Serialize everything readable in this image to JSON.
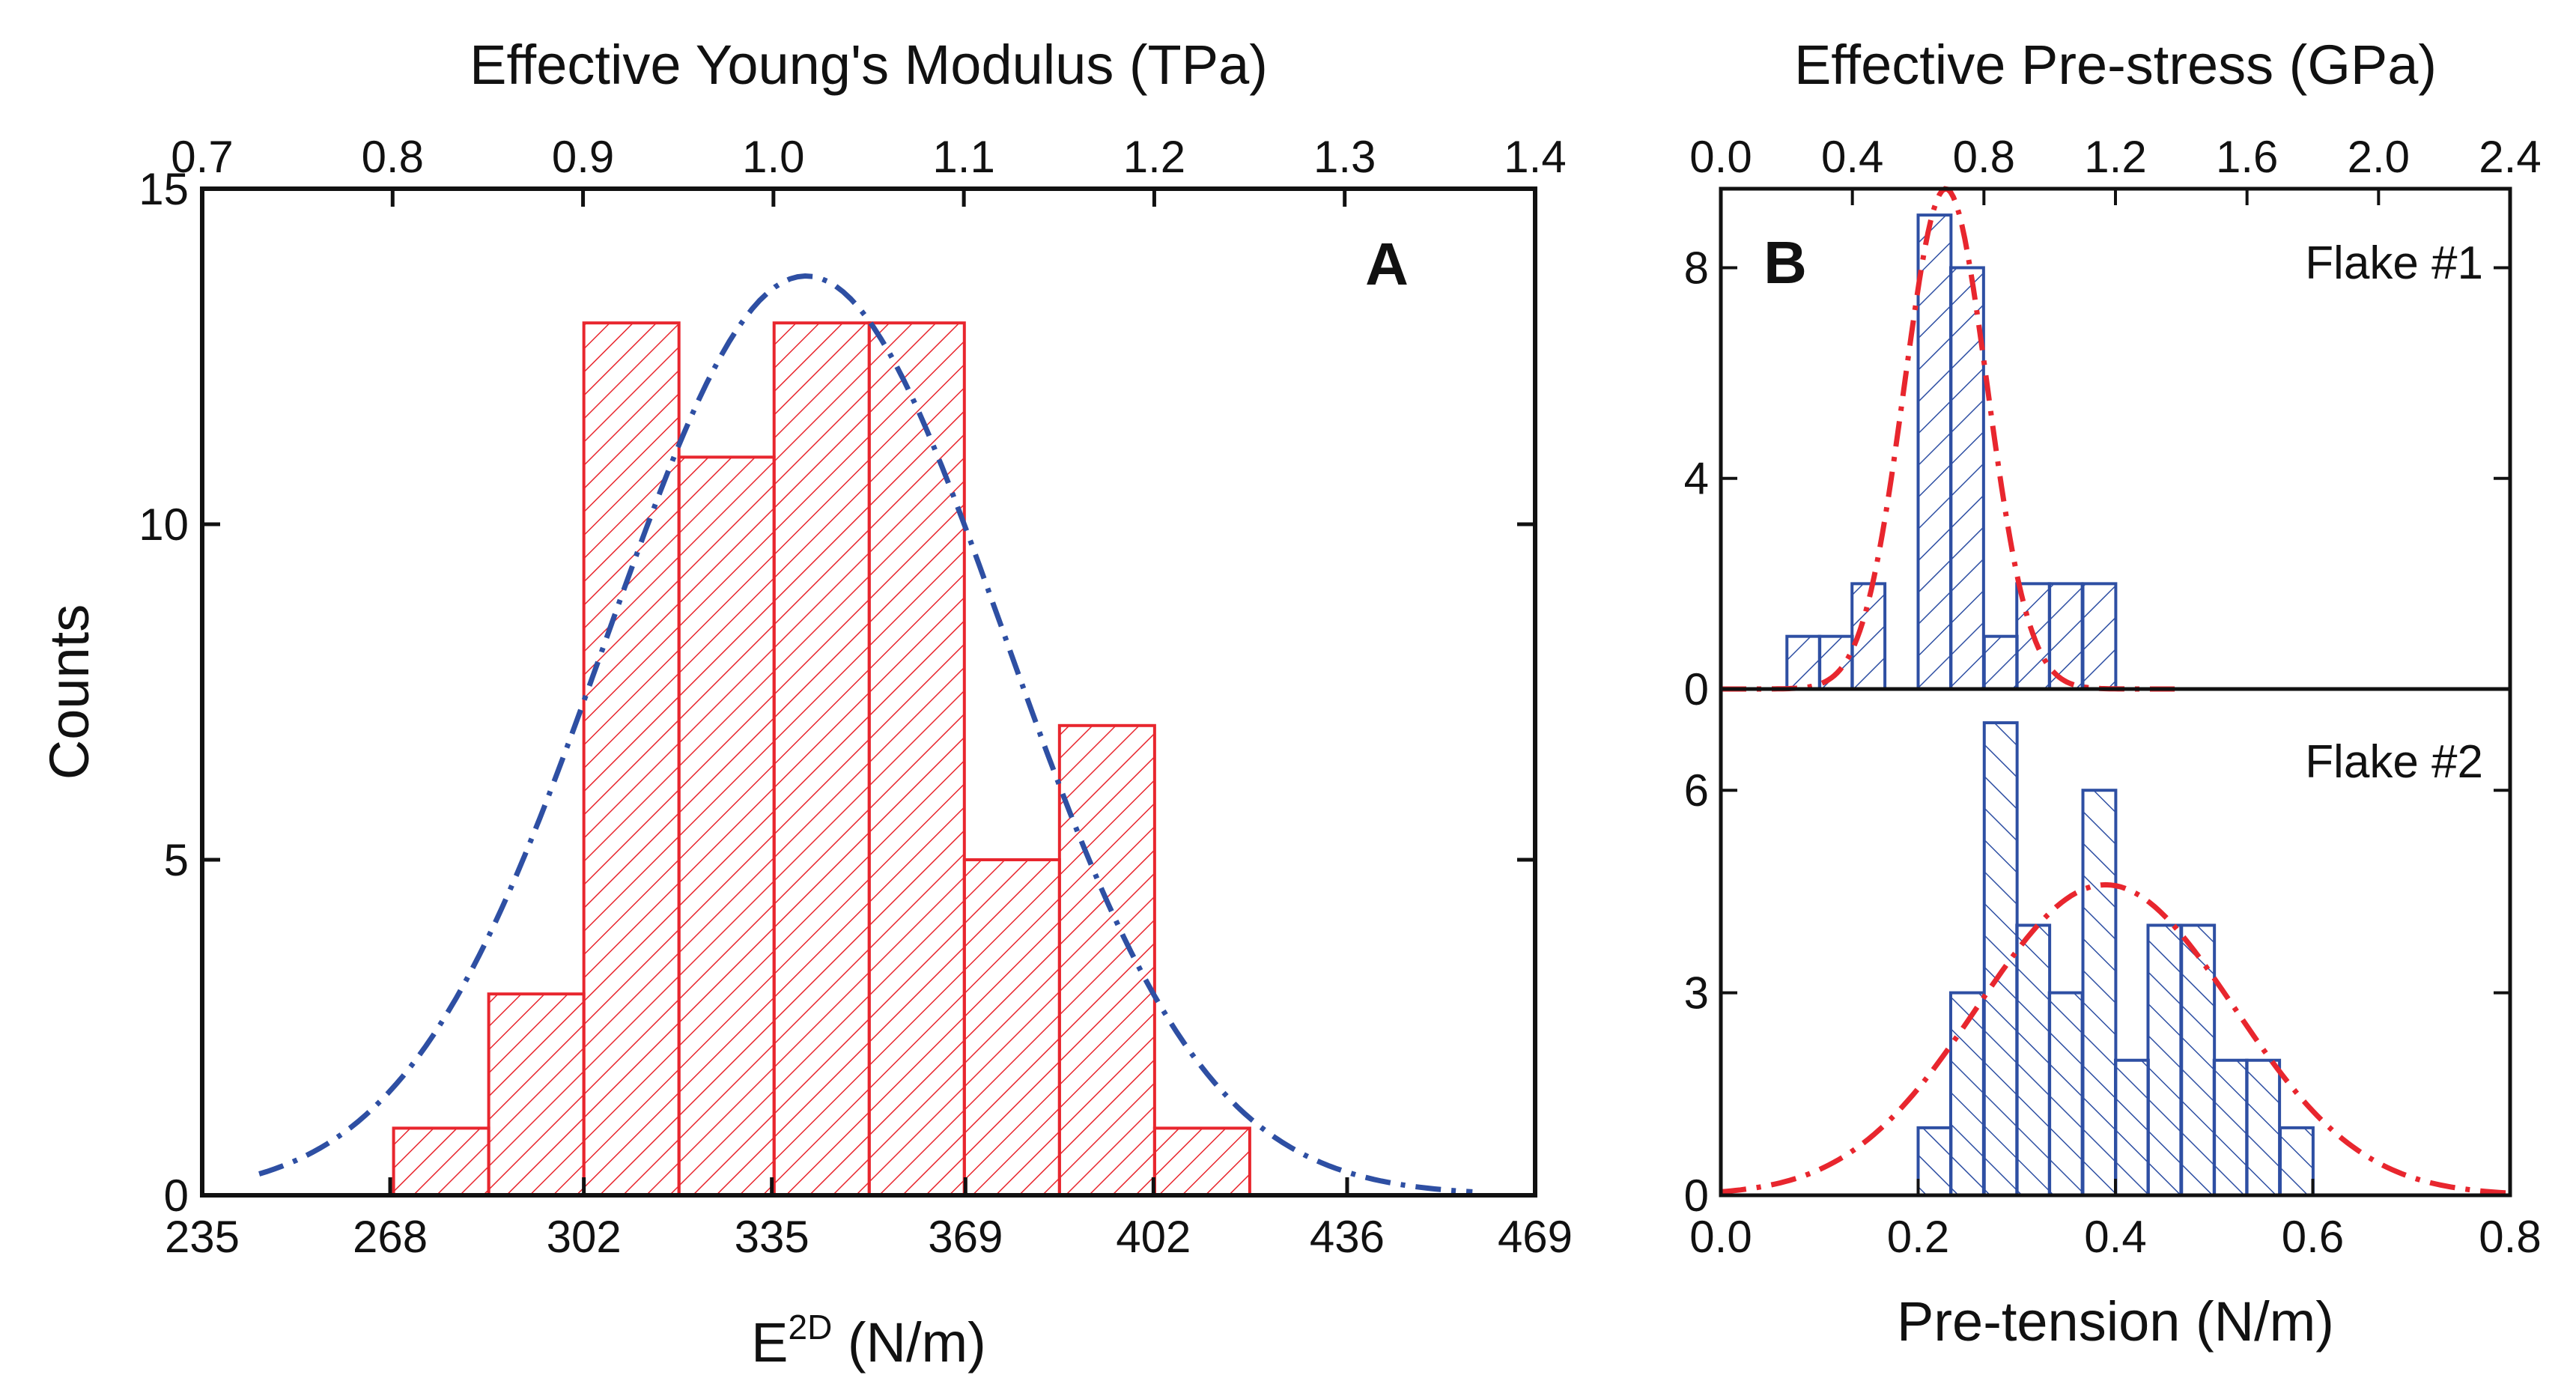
{
  "colors": {
    "panel_a_bars": "#e8262e",
    "panel_a_fit": "#2e4fa3",
    "panel_b_bars": "#2e4fa3",
    "panel_b_fit": "#e8262e",
    "axes": "#111111"
  },
  "chart_data": [
    {
      "type": "bar",
      "panel": "A",
      "title": "",
      "xlabel": "E",
      "xlabel_superscript": "2D",
      "xlabel_unit": " (N/m)",
      "ylabel": "Counts",
      "top_xlabel": "Effective Young's Modulus (TPa)",
      "xlim": [
        235,
        469
      ],
      "ylim": [
        0,
        15
      ],
      "xticks": [
        235,
        268,
        302,
        335,
        369,
        402,
        436,
        469
      ],
      "xtick_labels": [
        "235",
        "268",
        "302",
        "335",
        "369",
        "402",
        "436",
        "469"
      ],
      "yticks": [
        0,
        5,
        10,
        15
      ],
      "ytick_labels": [
        "0",
        "5",
        "10",
        "15"
      ],
      "top_xlim": [
        0.7,
        1.4
      ],
      "top_xticks": [
        0.7,
        0.8,
        0.9,
        1.0,
        1.1,
        1.2,
        1.3,
        1.4
      ],
      "top_xtick_labels": [
        "0.7",
        "0.8",
        "0.9",
        "1.0",
        "1.1",
        "1.2",
        "1.3",
        "1.4"
      ],
      "bin_width": 16.7,
      "bins": [
        {
          "left": 268.6,
          "count": 1
        },
        {
          "left": 285.3,
          "count": 3
        },
        {
          "left": 302.0,
          "count": 13
        },
        {
          "left": 318.7,
          "count": 11
        },
        {
          "left": 335.4,
          "count": 13
        },
        {
          "left": 352.1,
          "count": 13
        },
        {
          "left": 368.8,
          "count": 5
        },
        {
          "left": 385.5,
          "count": 7
        },
        {
          "left": 402.2,
          "count": 1
        }
      ],
      "fit": {
        "type": "gaussian",
        "mean": 341,
        "sigma": 35,
        "amplitude": 13.7,
        "x_range": [
          245,
          458
        ]
      },
      "panel_label": "A"
    },
    {
      "type": "bar",
      "panel": "B-top",
      "series_label": "Flake #1",
      "top_xlabel": "Effective Pre-stress (GPa)",
      "xlim": [
        0.0,
        0.8
      ],
      "ylim": [
        0,
        9.5
      ],
      "yticks": [
        0,
        4,
        8
      ],
      "ytick_labels": [
        "0",
        "4",
        "8"
      ],
      "top_xlim": [
        0.0,
        2.4
      ],
      "top_xticks": [
        0.0,
        0.4,
        0.8,
        1.2,
        1.6,
        2.0,
        2.4
      ],
      "top_xtick_labels": [
        "0.0",
        "0.4",
        "0.8",
        "1.2",
        "1.6",
        "2.0",
        "2.4"
      ],
      "bin_width": 0.0333,
      "bins": [
        {
          "left": 0.067,
          "count": 1
        },
        {
          "left": 0.1,
          "count": 1
        },
        {
          "left": 0.133,
          "count": 2
        },
        {
          "left": 0.2,
          "count": 9
        },
        {
          "left": 0.233,
          "count": 8
        },
        {
          "left": 0.267,
          "count": 1
        },
        {
          "left": 0.3,
          "count": 2
        },
        {
          "left": 0.333,
          "count": 2
        },
        {
          "left": 0.367,
          "count": 2
        }
      ],
      "fit": {
        "type": "gaussian",
        "mean": 0.228,
        "sigma": 0.042,
        "amplitude": 9.5,
        "x_range": [
          0.0,
          0.46
        ]
      },
      "panel_label": "B"
    },
    {
      "type": "bar",
      "panel": "B-bottom",
      "series_label": "Flake #2",
      "xlabel": "Pre-tension (N/m)",
      "xlim": [
        0.0,
        0.8
      ],
      "ylim": [
        0,
        7.5
      ],
      "xticks": [
        0.0,
        0.2,
        0.4,
        0.6,
        0.8
      ],
      "xtick_labels": [
        "0.0",
        "0.2",
        "0.4",
        "0.6",
        "0.8"
      ],
      "yticks": [
        0,
        3,
        6
      ],
      "ytick_labels": [
        "0",
        "3",
        "6"
      ],
      "bin_width": 0.0333,
      "bins": [
        {
          "left": 0.2,
          "count": 1
        },
        {
          "left": 0.233,
          "count": 3
        },
        {
          "left": 0.267,
          "count": 7
        },
        {
          "left": 0.3,
          "count": 4
        },
        {
          "left": 0.333,
          "count": 3
        },
        {
          "left": 0.367,
          "count": 6
        },
        {
          "left": 0.4,
          "count": 2
        },
        {
          "left": 0.433,
          "count": 4
        },
        {
          "left": 0.467,
          "count": 4
        },
        {
          "left": 0.5,
          "count": 2
        },
        {
          "left": 0.533,
          "count": 2
        },
        {
          "left": 0.567,
          "count": 1
        }
      ],
      "fit": {
        "type": "gaussian",
        "mean": 0.39,
        "sigma": 0.13,
        "amplitude": 4.6,
        "x_range": [
          0.0,
          0.8
        ]
      }
    }
  ]
}
